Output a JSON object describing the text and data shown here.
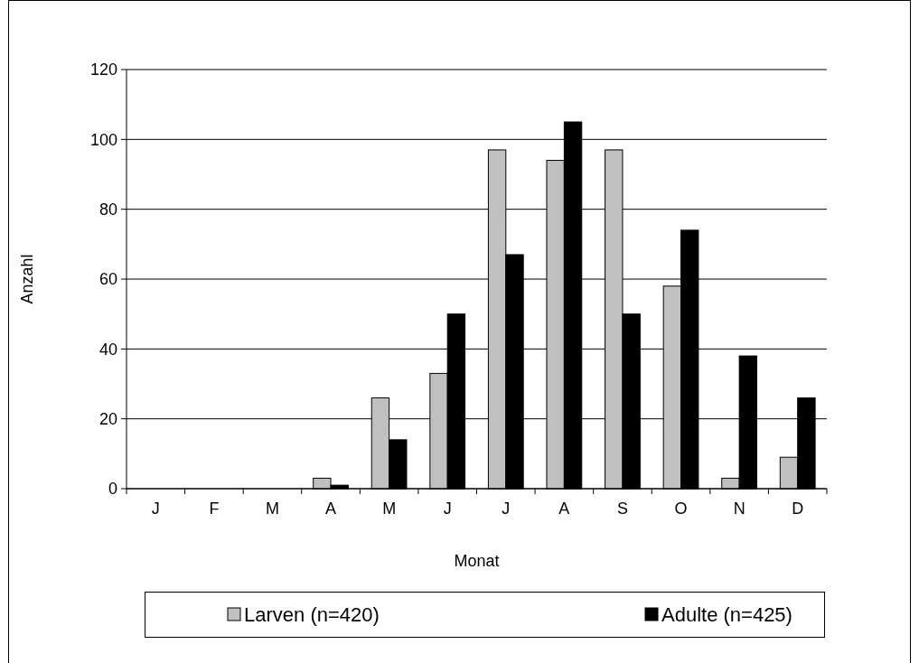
{
  "chart_data": {
    "type": "bar",
    "xlabel": "Monat",
    "ylabel": "Anzahl",
    "categories": [
      "J",
      "F",
      "M",
      "A",
      "M",
      "J",
      "J",
      "A",
      "S",
      "O",
      "N",
      "D"
    ],
    "series": [
      {
        "name": "Larven (n=420)",
        "color": "#c0c0c0",
        "values": [
          0,
          0,
          0,
          3,
          26,
          33,
          97,
          94,
          97,
          58,
          3,
          9
        ]
      },
      {
        "name": "Adulte (n=425)",
        "color": "#000000",
        "values": [
          0,
          0,
          0,
          1,
          14,
          50,
          67,
          105,
          50,
          74,
          38,
          26
        ]
      }
    ],
    "ylim": [
      0,
      120
    ],
    "yticks": [
      0,
      20,
      40,
      60,
      80,
      100,
      120
    ],
    "grid": "y",
    "legend": "bottom"
  }
}
